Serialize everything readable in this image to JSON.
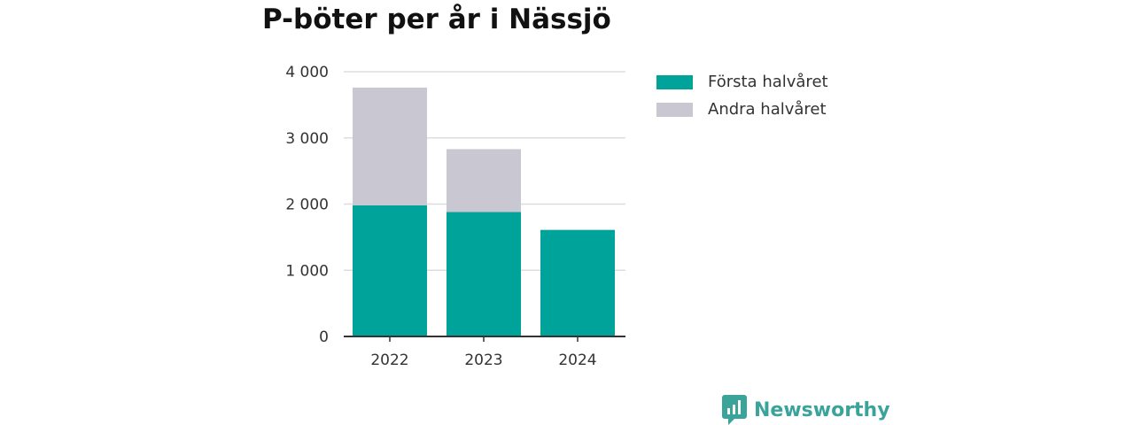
{
  "title": "P-böter per år i Nässjö",
  "colors": {
    "first_half": "#00a39a",
    "second_half": "#c8c7d2",
    "grid": "#dddddd",
    "axis": "#333333"
  },
  "chart_data": {
    "type": "bar",
    "stacked": true,
    "title": "P-böter per år i Nässjö",
    "categories": [
      "2022",
      "2023",
      "2024"
    ],
    "series": [
      {
        "name": "Första halvåret",
        "values": [
          1980,
          1880,
          1610
        ]
      },
      {
        "name": "Andra halvåret",
        "values": [
          1780,
          950,
          0
        ]
      }
    ],
    "ylim": [
      0,
      4000
    ],
    "yticks": [
      0,
      1000,
      2000,
      3000,
      4000
    ],
    "ytick_labels": [
      "0",
      "1 000",
      "2 000",
      "3 000",
      "4 000"
    ],
    "grid": true,
    "legend_position": "top-right"
  },
  "brand": {
    "name": "Newsworthy",
    "icon": "newsworthy-logo-icon"
  }
}
